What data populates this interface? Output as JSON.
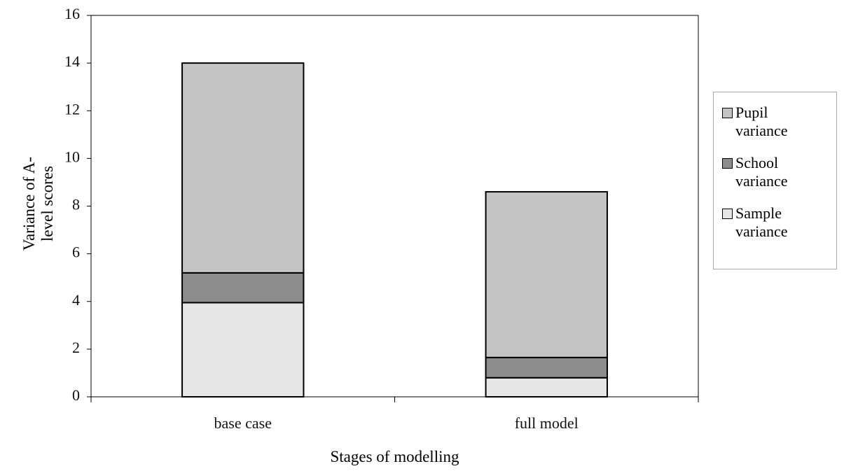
{
  "chart_data": {
    "type": "stacked_bar",
    "ylabel": "Variance of A-level scores",
    "xlabel": "Stages of modelling",
    "categories": [
      "base case",
      "full model"
    ],
    "series": [
      {
        "name": "Pupil variance",
        "color": "#c4c4c4",
        "values": [
          8.8,
          6.95
        ]
      },
      {
        "name": "School variance",
        "color": "#8c8c8c",
        "values": [
          1.25,
          0.85
        ]
      },
      {
        "name": "Sample variance",
        "color": "#e6e6e6",
        "values": [
          3.95,
          0.8
        ]
      }
    ],
    "ylim": [
      0,
      16
    ],
    "yticks": [
      0,
      2,
      4,
      6,
      8,
      10,
      12,
      14,
      16
    ],
    "grid": false,
    "legend": "right"
  }
}
